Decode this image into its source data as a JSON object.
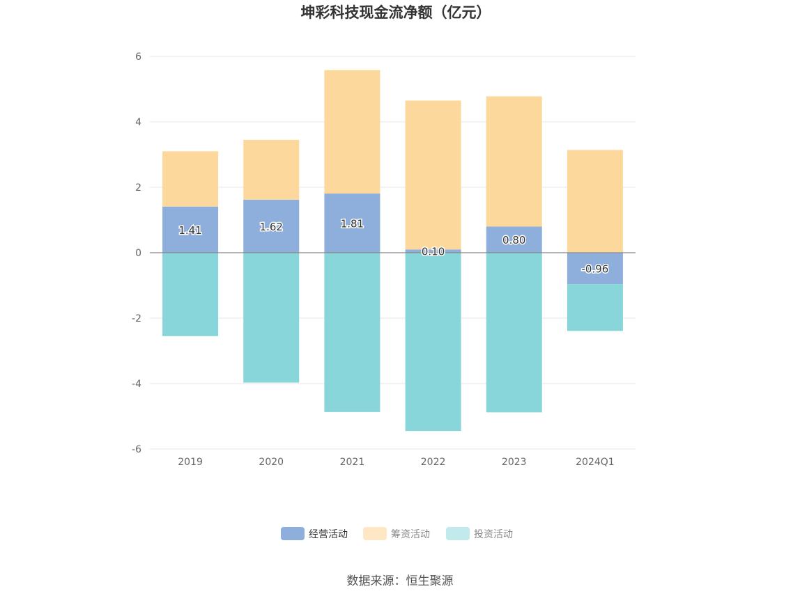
{
  "chart_data": {
    "type": "bar",
    "stacked": true,
    "title": "坤彩科技现金流净额（亿元）",
    "categories": [
      "2019",
      "2020",
      "2021",
      "2022",
      "2023",
      "2024Q1"
    ],
    "ylim": [
      -6,
      6
    ],
    "yticks": [
      6,
      4,
      2,
      0,
      -2,
      -4,
      -6
    ],
    "grid": true,
    "legend_position": "bottom-center",
    "series": [
      {
        "name": "经营活动",
        "color": "#8eaedb",
        "values": [
          1.41,
          1.62,
          1.81,
          0.1,
          0.8,
          -0.96
        ],
        "labels": [
          "1.41",
          "1.62",
          "1.81",
          "0.10",
          "0.80",
          "-0.96"
        ]
      },
      {
        "name": "筹资活动",
        "color": "#fdd89c",
        "values": [
          1.69,
          1.83,
          3.77,
          4.55,
          3.98,
          3.14
        ]
      },
      {
        "name": "投资活动",
        "color": "#88d6da",
        "values": [
          -2.55,
          -3.97,
          -4.87,
          -5.45,
          -4.88,
          -1.43
        ]
      }
    ],
    "legend": [
      {
        "name": "经营活动",
        "color": "#8eaedb",
        "active": true
      },
      {
        "name": "筹资活动",
        "color": "#fde7c4",
        "active": false
      },
      {
        "name": "投资活动",
        "color": "#c2e9eb",
        "active": false
      }
    ],
    "source": "数据来源：恒生聚源"
  }
}
